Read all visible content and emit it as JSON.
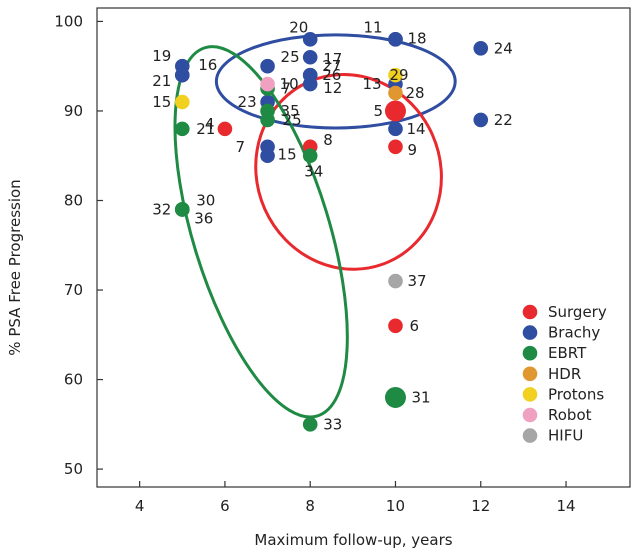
{
  "chart_data": {
    "type": "scatter",
    "xlabel": "Maximum follow-up, years",
    "ylabel": "% PSA Free Progression",
    "xlim": [
      3,
      15.5
    ],
    "ylim": [
      48,
      101.5
    ],
    "xticks": [
      4,
      6,
      8,
      10,
      12,
      14
    ],
    "yticks": [
      50,
      60,
      70,
      80,
      90,
      100
    ],
    "grid": false,
    "legend_position": "bottom-right",
    "series": [
      {
        "name": "Surgery",
        "color": "#e8292e",
        "points": [
          {
            "x": 6,
            "y": 88,
            "label": "4"
          },
          {
            "x": 10,
            "y": 90,
            "label": "5",
            "large": true
          },
          {
            "x": 10,
            "y": 66,
            "label": "6"
          },
          {
            "x": 8,
            "y": 86,
            "label": "8"
          },
          {
            "x": 10,
            "y": 86,
            "label": "9"
          }
        ]
      },
      {
        "name": "Brachy",
        "color": "#2f4da1",
        "points": [
          {
            "x": 7,
            "y": 86,
            "label": "7"
          },
          {
            "x": 10,
            "y": 98,
            "label": "11"
          },
          {
            "x": 8,
            "y": 93,
            "label": "12"
          },
          {
            "x": 10,
            "y": 93,
            "label": "13"
          },
          {
            "x": 10,
            "y": 88,
            "label": "14"
          },
          {
            "x": 7,
            "y": 85,
            "label": "15"
          },
          {
            "x": 5,
            "y": 94,
            "label": "16"
          },
          {
            "x": 8,
            "y": 96,
            "label": "17"
          },
          {
            "x": 10,
            "y": 98,
            "label": "18"
          },
          {
            "x": 5,
            "y": 95,
            "label": "19"
          },
          {
            "x": 8,
            "y": 98,
            "label": "20"
          },
          {
            "x": 5,
            "y": 94,
            "label": "21"
          },
          {
            "x": 12,
            "y": 89,
            "label": "22"
          },
          {
            "x": 7,
            "y": 91,
            "label": "23"
          },
          {
            "x": 12,
            "y": 97,
            "label": "24"
          },
          {
            "x": 7,
            "y": 95,
            "label": "25"
          },
          {
            "x": 8,
            "y": 94,
            "label": "26"
          },
          {
            "x": 8,
            "y": 94,
            "label": "27"
          }
        ]
      },
      {
        "name": "EBRT",
        "color": "#1f8a43",
        "points": [
          {
            "x": 5,
            "y": 88,
            "label": "21"
          },
          {
            "x": 7,
            "y": 89,
            "label": "25"
          },
          {
            "x": 5,
            "y": 79,
            "label": "30"
          },
          {
            "x": 5,
            "y": 79,
            "label": "32"
          },
          {
            "x": 5,
            "y": 79,
            "label": "36"
          },
          {
            "x": 10,
            "y": 58,
            "label": "31",
            "large": true
          },
          {
            "x": 8,
            "y": 55,
            "label": "33"
          },
          {
            "x": 8,
            "y": 85,
            "label": "34"
          },
          {
            "x": 7,
            "y": 90,
            "label": "35"
          },
          {
            "x": 7,
            "y": 92.5,
            "label": "7"
          }
        ]
      },
      {
        "name": "HDR",
        "color": "#e0972f",
        "points": [
          {
            "x": 10,
            "y": 92,
            "label": "28"
          }
        ]
      },
      {
        "name": "Protons",
        "color": "#f2d020",
        "points": [
          {
            "x": 5,
            "y": 91,
            "label": "15"
          },
          {
            "x": 10,
            "y": 94,
            "label": "29"
          }
        ]
      },
      {
        "name": "Robot",
        "color": "#f0a1c2",
        "points": [
          {
            "x": 7,
            "y": 93,
            "label": "10"
          }
        ]
      },
      {
        "name": "HIFU",
        "color": "#a6a6a6",
        "points": [
          {
            "x": 10,
            "y": 71,
            "label": "37"
          }
        ]
      }
    ],
    "ellipses": [
      {
        "color": "#2f4da1",
        "cx": 8.6,
        "cy": 93.3,
        "rx": 2.8,
        "ry": 5.2,
        "rotate": 0
      },
      {
        "color": "#e8292e",
        "cx": 8.9,
        "cy": 83.2,
        "rx": 2.15,
        "ry": 11.0,
        "rotate": -24
      },
      {
        "color": "#1f8a43",
        "cx": 6.85,
        "cy": 76.5,
        "rx": 1.6,
        "ry": 21.5,
        "rotate": -17
      }
    ]
  }
}
